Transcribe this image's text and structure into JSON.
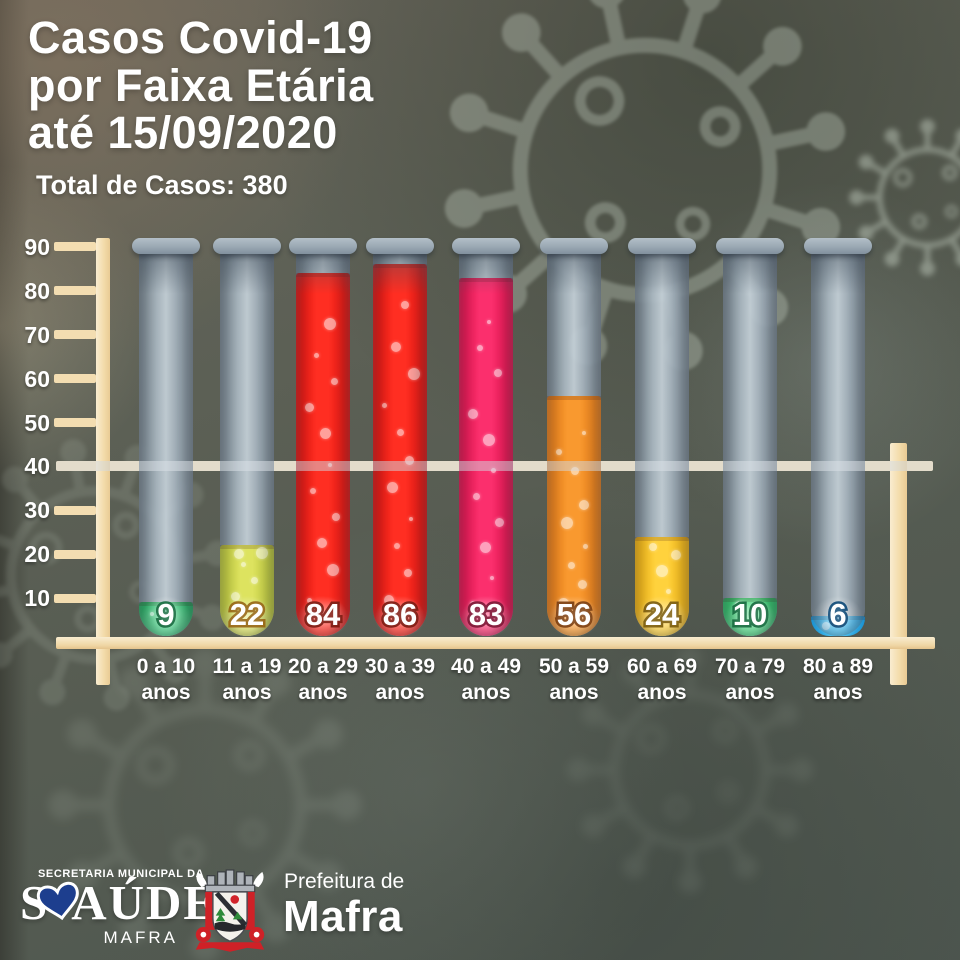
{
  "title": {
    "line1": "Casos Covid-19",
    "line2": "por Faixa Etária",
    "line3": "até 15/09/2020"
  },
  "total_label": "Total de Casos: 380",
  "chart_data": {
    "type": "bar",
    "bar_style": "test-tubes",
    "title": "Casos Covid-19 por Faixa Etária até 15/09/2020",
    "subtitle": "Total de Casos: 380",
    "total": 380,
    "categories": [
      "0 a 10",
      "11 a 19",
      "20 a 29",
      "30 a 39",
      "40 a 49",
      "50 a 59",
      "60 a 69",
      "70 a 79",
      "80 a 89"
    ],
    "category_unit": "anos",
    "values": [
      9,
      22,
      84,
      86,
      83,
      56,
      24,
      10,
      6
    ],
    "ylim": [
      0,
      90
    ],
    "yticks": [
      90,
      80,
      70,
      60,
      50,
      40,
      30,
      20,
      10
    ],
    "reference_line_y": 40,
    "grid": false,
    "legend": false,
    "bar_colors": [
      {
        "edge": "#1f9e57",
        "center": "#44cf83",
        "outline": "#136b3d"
      },
      {
        "edge": "#b2bd33",
        "center": "#dde35f",
        "outline": "#96660f"
      },
      {
        "edge": "#d40f0c",
        "center": "#ff2e22",
        "outline": "#7d1208"
      },
      {
        "edge": "#d40f0c",
        "center": "#ff2e22",
        "outline": "#7d1208"
      },
      {
        "edge": "#d60d46",
        "center": "#fb2f6d",
        "outline": "#7d0c2e"
      },
      {
        "edge": "#dd7413",
        "center": "#f9992f",
        "outline": "#7d3c0a"
      },
      {
        "edge": "#e8a90a",
        "center": "#ffd23d",
        "outline": "#7d5c08"
      },
      {
        "edge": "#27ad5c",
        "center": "#4fd983",
        "outline": "#136b3d"
      },
      {
        "edge": "#1b90cf",
        "center": "#42bdf0",
        "outline": "#0f4a77"
      }
    ]
  },
  "footer": {
    "secretaria_small": "SECRETARIA MUNICIPAL DA",
    "saude_s": "S",
    "saude_rest": "AÚDE",
    "saude_city": "MAFRA",
    "prefeitura_line": "Prefeitura de",
    "prefeitura_city": "Mafra"
  },
  "colors": {
    "axis_cream": "#f3ddb1",
    "background": "#5a6056",
    "title_text": "#ffffff",
    "heart_blue": "#1d3e8e",
    "crest_red": "#cf2127"
  }
}
